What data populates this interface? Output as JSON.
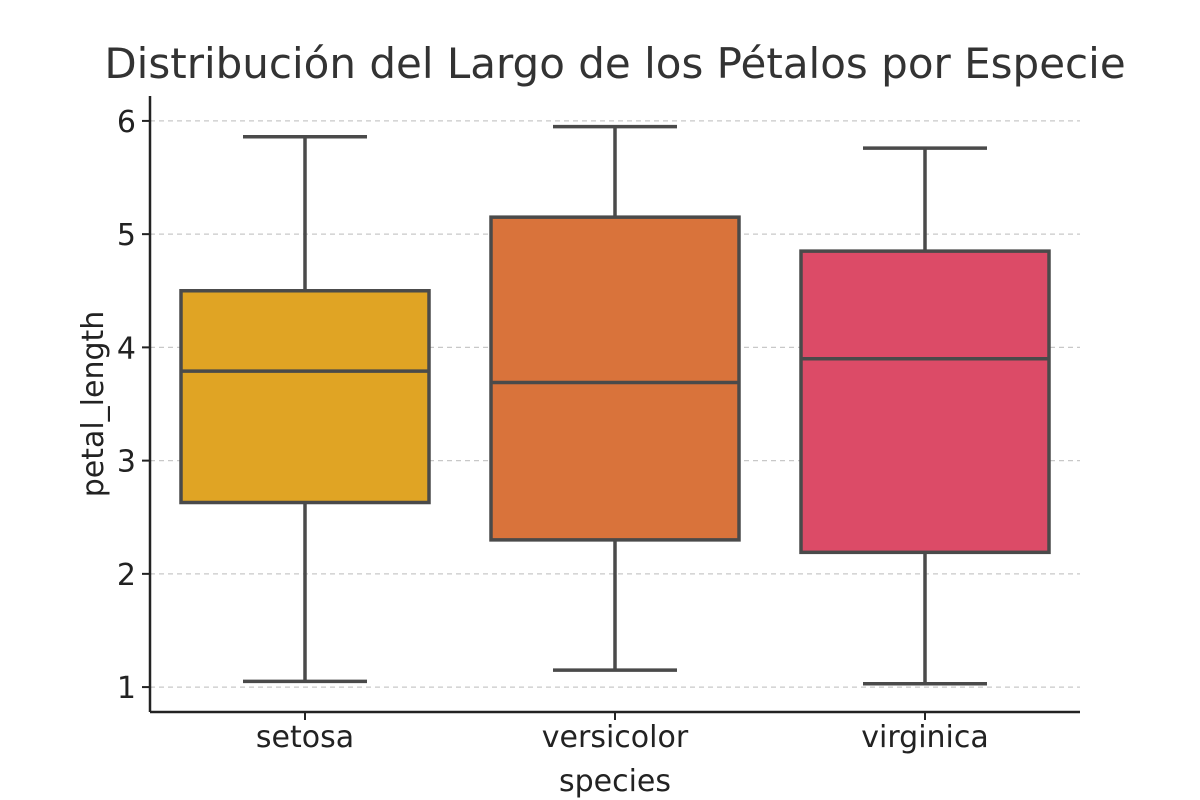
{
  "chart_data": {
    "type": "box",
    "title": "Distribución del Largo de los Pétalos por Especie",
    "xlabel": "species",
    "ylabel": "petal_length",
    "ylim": [
      0.78,
      6.22
    ],
    "yticks": [
      1,
      2,
      3,
      4,
      5,
      6
    ],
    "grid": "y-dashed",
    "categories": [
      "setosa",
      "versicolor",
      "virginica"
    ],
    "series": [
      {
        "category": "setosa",
        "color": "#e0a424",
        "min": 1.05,
        "q1": 2.63,
        "median": 3.79,
        "q3": 4.5,
        "max": 5.86
      },
      {
        "category": "versicolor",
        "color": "#d9733b",
        "min": 1.15,
        "q1": 2.3,
        "median": 3.69,
        "q3": 5.15,
        "max": 5.95
      },
      {
        "category": "virginica",
        "color": "#dc4b67",
        "min": 1.03,
        "q1": 2.19,
        "median": 3.9,
        "q3": 4.85,
        "max": 5.76
      }
    ]
  }
}
